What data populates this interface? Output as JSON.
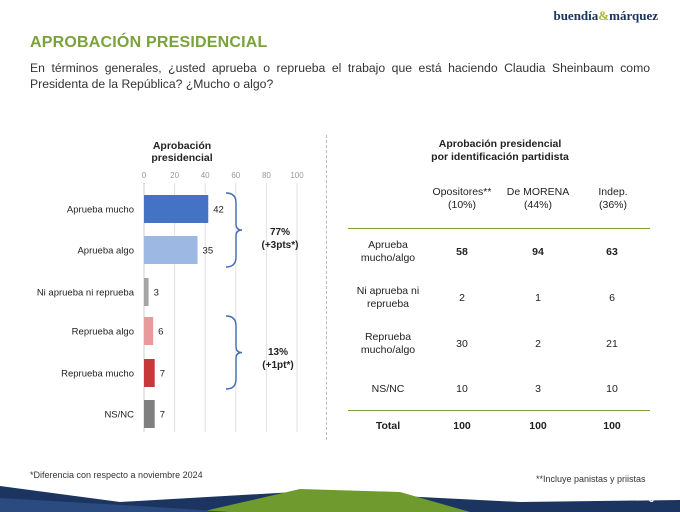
{
  "header": {
    "logo_text_a": "buendía",
    "logo_amp": "&",
    "logo_text_b": "márquez",
    "title": "APROBACIÓN PRESIDENCIAL",
    "question": "En términos generales, ¿usted aprueba o reprueba el trabajo que está haciendo Claudia Sheinbaum como Presidenta de la República? ¿Mucho o algo?"
  },
  "chart_data": [
    {
      "type": "bar",
      "orientation": "horizontal",
      "title": "Aprobación presidencial",
      "categories": [
        "Aprueba mucho",
        "Aprueba algo",
        "Ni aprueba ni reprueba",
        "Reprueba algo",
        "Reprueba mucho",
        "NS/NC"
      ],
      "values": [
        42,
        35,
        3,
        6,
        7,
        7
      ],
      "colors": [
        "#4472c4",
        "#9db8e2",
        "#a6a6a6",
        "#e99a9a",
        "#c8383a",
        "#7f7f7f"
      ],
      "xlim": [
        0,
        100
      ],
      "xticks": [
        "0",
        "20",
        "40",
        "60",
        "80",
        "100"
      ],
      "grid": true,
      "annotations": [
        {
          "label": "77%",
          "sub": "(+3pts*)",
          "categories": [
            "Aprueba mucho",
            "Aprueba algo"
          ]
        },
        {
          "label": "13%",
          "sub": "(+1pt*)",
          "categories": [
            "Reprueba algo",
            "Reprueba mucho"
          ]
        }
      ]
    },
    {
      "type": "table",
      "title_line1": "Aprobación presidencial",
      "title_line2": "por identificación partidista",
      "columns": [
        {
          "name": "Opositores**",
          "share": "(10%)"
        },
        {
          "name": "De MORENA",
          "share": "(44%)"
        },
        {
          "name": "Indep.",
          "share": "(36%)"
        }
      ],
      "rows": [
        {
          "label_1": "Aprueba",
          "label_2": "mucho/algo",
          "values": [
            "58",
            "94",
            "63"
          ],
          "bold": true
        },
        {
          "label_1": "Ni aprueba ni",
          "label_2": "reprueba",
          "values": [
            "2",
            "1",
            "6"
          ],
          "bold": false
        },
        {
          "label_1": "Reprueba",
          "label_2": "mucho/algo",
          "values": [
            "30",
            "2",
            "21"
          ],
          "bold": false
        },
        {
          "label_1": "NS/NC",
          "label_2": "",
          "values": [
            "10",
            "3",
            "10"
          ],
          "bold": false
        },
        {
          "label_1": "Total",
          "label_2": "",
          "values": [
            "100",
            "100",
            "100"
          ],
          "bold": true
        }
      ]
    }
  ],
  "footnotes": {
    "left": "*Diferencia con respecto a noviembre 2024",
    "right": "**Incluye panistas y priistas"
  },
  "page_number": "3",
  "colors": {
    "title_green": "#7aa23a",
    "navy": "#1b3560",
    "footer_green": "#6e9a2e"
  }
}
